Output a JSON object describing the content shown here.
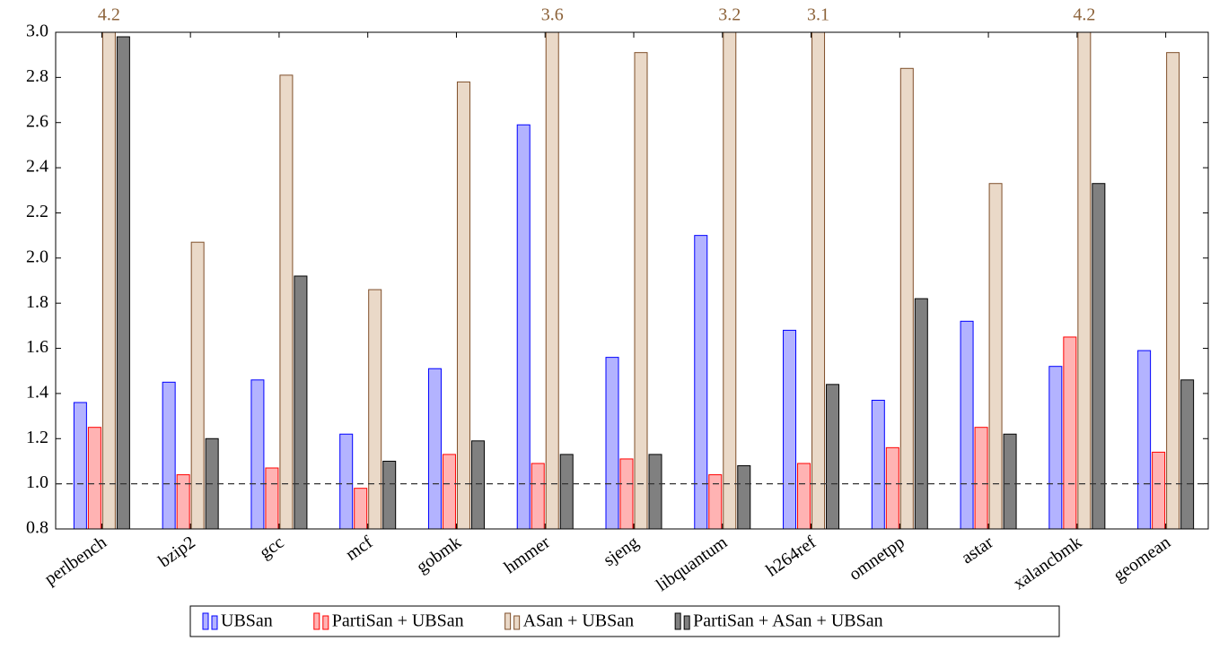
{
  "chart_data": {
    "type": "bar",
    "categories": [
      "perlbench",
      "bzip2",
      "gcc",
      "mcf",
      "gobmk",
      "hmmer",
      "sjeng",
      "libquantum",
      "h264ref",
      "omnetpp",
      "astar",
      "xalancbmk",
      "geomean"
    ],
    "series": [
      {
        "name": "UBSan",
        "color": "#b3b3ff",
        "edge": "#0000ff",
        "values": [
          1.36,
          1.45,
          1.46,
          1.22,
          1.51,
          2.59,
          1.56,
          2.1,
          1.68,
          1.37,
          1.72,
          1.52,
          1.59
        ]
      },
      {
        "name": "PartiSan + UBSan",
        "color": "#ffb3b3",
        "edge": "#ff0000",
        "values": [
          1.25,
          1.04,
          1.07,
          0.98,
          1.13,
          1.09,
          1.11,
          1.04,
          1.09,
          1.16,
          1.25,
          1.65,
          1.14
        ]
      },
      {
        "name": "ASan + UBSan",
        "color": "#ead9c8",
        "edge": "#7f4f2a",
        "values": [
          4.2,
          2.07,
          2.81,
          1.86,
          2.78,
          3.6,
          2.91,
          3.2,
          3.1,
          2.84,
          2.33,
          4.2,
          2.91
        ],
        "value_labels": [
          "4.2",
          null,
          null,
          null,
          null,
          "3.6",
          null,
          "3.2",
          "3.1",
          null,
          null,
          "4.2",
          null
        ],
        "label_color": "#8c6239"
      },
      {
        "name": "PartiSan + ASan + UBSan",
        "color": "#808080",
        "edge": "#000000",
        "values": [
          2.98,
          1.2,
          1.92,
          1.1,
          1.19,
          1.13,
          1.13,
          1.08,
          1.44,
          1.82,
          1.22,
          2.33,
          1.46
        ]
      }
    ],
    "ylim": [
      0.8,
      3.0
    ],
    "yticks": [
      0.8,
      {
        "value": 1,
        "label": "1.0"
      },
      1.2,
      1.4,
      1.6,
      1.8,
      {
        "value": 2,
        "label": "2.0"
      },
      2.2,
      2.4,
      2.6,
      2.8,
      {
        "value": 3,
        "label": "3.0"
      }
    ],
    "reference_line": 1,
    "grid": false,
    "legend": "bottom"
  }
}
